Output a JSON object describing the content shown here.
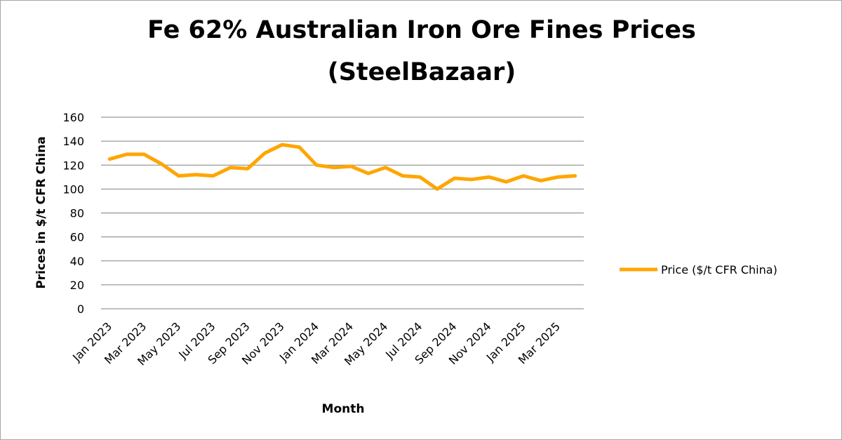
{
  "chart_data": {
    "type": "line",
    "title_line1": "Fe 62% Australian Iron Ore Fines Prices",
    "title_line2": "(SteelBazaar)",
    "xlabel": "Month",
    "ylabel": "Prices in $/t CFR China",
    "ylim": [
      0,
      160
    ],
    "yticks": [
      0,
      20,
      40,
      60,
      80,
      100,
      120,
      140,
      160
    ],
    "grid": true,
    "legend_position": "right",
    "x": [
      "Jan 2023",
      "Feb 2023",
      "Mar 2023",
      "Apr 2023",
      "May 2023",
      "Jun 2023",
      "Jul 2023",
      "Aug 2023",
      "Sep 2023",
      "Oct 2023",
      "Nov 2023",
      "Dec 2023",
      "Jan 2024",
      "Feb 2024",
      "Mar 2024",
      "Apr 2024",
      "May 2024",
      "Jun 2024",
      "Jul 2024",
      "Aug 2024",
      "Sep 2024",
      "Oct 2024",
      "Nov 2024",
      "Dec 2024",
      "Jan 2025",
      "Feb 2025",
      "Mar 2025",
      "Apr 2025"
    ],
    "x_tick_labels": [
      "Jan 2023",
      "Mar 2023",
      "May 2023",
      "Jul 2023",
      "Sep 2023",
      "Nov 2023",
      "Jan 2024",
      "Mar 2024",
      "May 2024",
      "Jul 2024",
      "Sep 2024",
      "Nov 2024",
      "Jan 2025",
      "Mar 2025"
    ],
    "series": [
      {
        "name": "Price ($/t CFR China)",
        "color": "#ffa500",
        "values": [
          125,
          129,
          129,
          121,
          111,
          112,
          111,
          118,
          117,
          130,
          137,
          135,
          120,
          118,
          119,
          113,
          118,
          111,
          110,
          100,
          109,
          108,
          110,
          106,
          111,
          107,
          110,
          111
        ]
      }
    ]
  }
}
